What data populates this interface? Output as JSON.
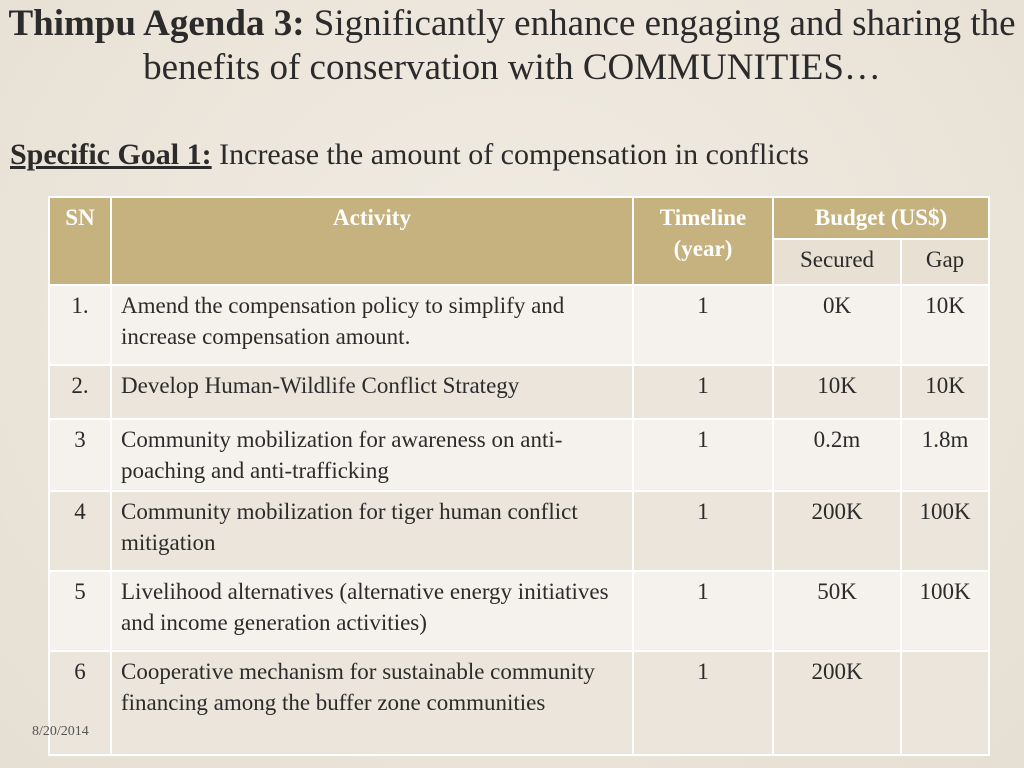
{
  "title": {
    "bold": "Thimpu Agenda 3:",
    "rest": "Significantly enhance engaging and sharing the benefits of conservation with COMMUNITIES…"
  },
  "goal": {
    "label": "Specific Goal 1:",
    "text": "Increase the amount of compensation in conflicts"
  },
  "table": {
    "headers": {
      "sn": "SN",
      "activity": "Activity",
      "timeline": "Timeline (year)",
      "budget": "Budget (US$)",
      "secured": "Secured",
      "gap": "Gap"
    },
    "rows": [
      {
        "sn": "1.",
        "activity": "Amend the compensation policy to simplify and increase compensation amount.",
        "timeline": "1",
        "secured": "0K",
        "gap": "10K"
      },
      {
        "sn": "2.",
        "activity": "Develop Human-Wildlife Conflict Strategy",
        "timeline": "1",
        "secured": "10K",
        "gap": "10K"
      },
      {
        "sn": "3",
        "activity": "Community mobilization for awareness on anti-poaching and anti-trafficking",
        "timeline": "1",
        "secured": "0.2m",
        "gap": "1.8m"
      },
      {
        "sn": "4",
        "activity": "Community mobilization for tiger human conflict mitigation",
        "timeline": "1",
        "secured": "200K",
        "gap": "100K"
      },
      {
        "sn": "5",
        "activity": "Livelihood alternatives (alternative energy initiatives and income generation activities)",
        "timeline": "1",
        "secured": "50K",
        "gap": "100K"
      },
      {
        "sn": "6",
        "activity": "Cooperative mechanism for sustainable community financing among the buffer zone communities",
        "timeline": "1",
        "secured": "200K",
        "gap": ""
      }
    ]
  },
  "footer": {
    "date": "8/20/2014"
  }
}
